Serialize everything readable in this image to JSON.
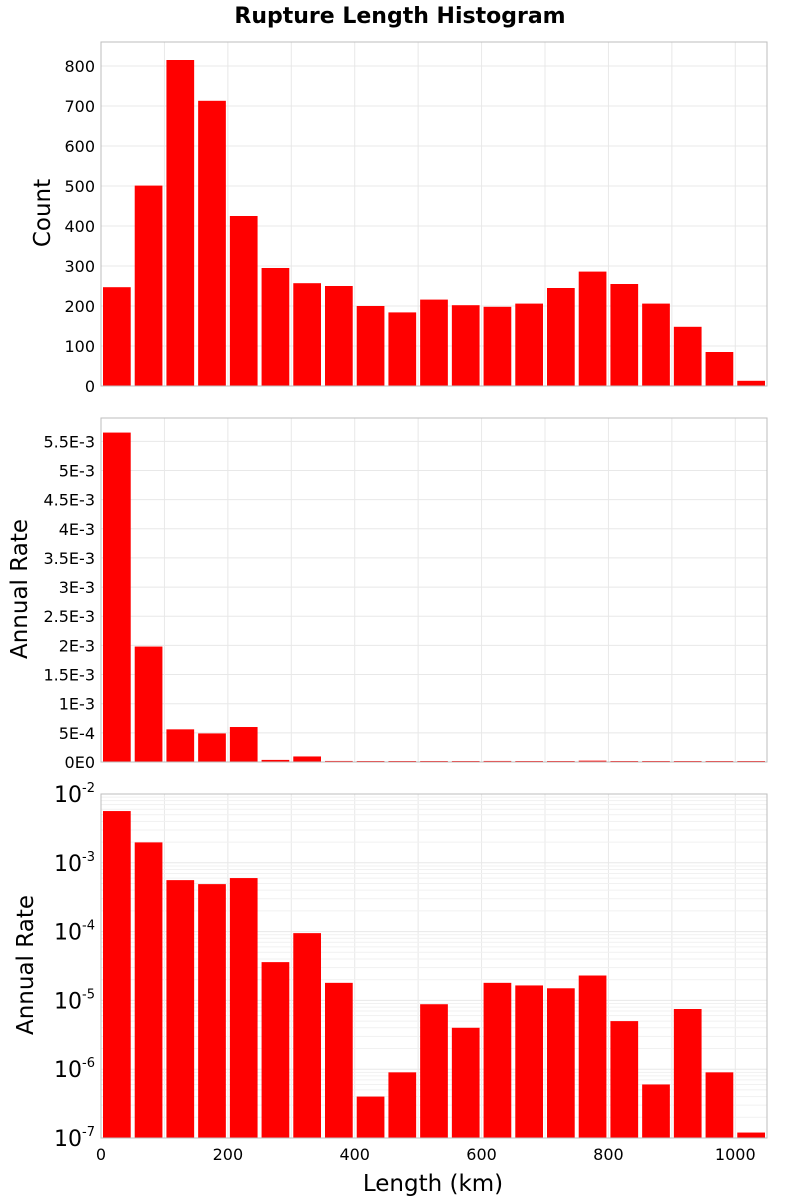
{
  "colors": {
    "bar": "#ff0000"
  },
  "chart_data": [
    {
      "type": "bar",
      "title": "Rupture Length Histogram",
      "xlabel": "",
      "ylabel": "Count",
      "bin_width": 50,
      "xlim": [
        0,
        1050
      ],
      "ylim": [
        0,
        860
      ],
      "yticks": [
        0,
        100,
        200,
        300,
        400,
        500,
        600,
        700,
        800
      ],
      "ytick_labels": [
        "0",
        "100",
        "200",
        "300",
        "400",
        "500",
        "600",
        "700",
        "800"
      ],
      "x": [
        25,
        75,
        125,
        175,
        225,
        275,
        325,
        375,
        425,
        475,
        525,
        575,
        625,
        675,
        725,
        775,
        825,
        875,
        925,
        975,
        1025
      ],
      "values": [
        247,
        501,
        815,
        713,
        425,
        295,
        257,
        250,
        200,
        184,
        216,
        202,
        198,
        206,
        245,
        286,
        255,
        206,
        148,
        85,
        13
      ]
    },
    {
      "type": "bar",
      "title": "",
      "xlabel": "",
      "ylabel": "Annual Rate",
      "bin_width": 50,
      "xlim": [
        0,
        1050
      ],
      "ylim": [
        0,
        0.0059
      ],
      "yticks": [
        0,
        0.0005,
        0.001,
        0.0015,
        0.002,
        0.0025,
        0.003,
        0.0035,
        0.004,
        0.0045,
        0.005,
        0.0055
      ],
      "ytick_labels": [
        "0E0",
        "5E-4",
        "1E-3",
        "1.5E-3",
        "2E-3",
        "2.5E-3",
        "3E-3",
        "3.5E-3",
        "4E-3",
        "4.5E-3",
        "5E-3",
        "5.5E-3"
      ],
      "x": [
        25,
        75,
        125,
        175,
        225,
        275,
        325,
        375,
        425,
        475,
        525,
        575,
        625,
        675,
        725,
        775,
        825,
        875,
        925,
        975,
        1025
      ],
      "values": [
        0.00565,
        0.00198,
        0.00056,
        0.00049,
        0.0006,
        3.6e-05,
        9.5e-05,
        1.8e-05,
        4e-07,
        9e-07,
        8.8e-06,
        4e-06,
        1.8e-05,
        1.65e-05,
        1.5e-05,
        2.3e-05,
        5e-06,
        6e-07,
        7.5e-06,
        9e-07,
        1.2e-07
      ]
    },
    {
      "type": "bar",
      "scale": "log",
      "title": "",
      "xlabel": "Length (km)",
      "ylabel": "Annual Rate",
      "bin_width": 50,
      "xlim": [
        0,
        1050
      ],
      "ylim": [
        1e-07,
        0.01
      ],
      "yticks_base": [
        "10",
        "10",
        "10",
        "10",
        "10",
        "10"
      ],
      "yticks_exp": [
        "-7",
        "-6",
        "-5",
        "-4",
        "-3",
        "-2"
      ],
      "xticks": [
        0,
        200,
        400,
        600,
        800,
        1000
      ],
      "xtick_labels": [
        "0",
        "200",
        "400",
        "600",
        "800",
        "1000"
      ],
      "x": [
        25,
        75,
        125,
        175,
        225,
        275,
        325,
        375,
        425,
        475,
        525,
        575,
        625,
        675,
        725,
        775,
        825,
        875,
        925,
        975,
        1025
      ],
      "values": [
        0.00565,
        0.00198,
        0.00056,
        0.00049,
        0.0006,
        3.6e-05,
        9.5e-05,
        1.8e-05,
        4e-07,
        9e-07,
        8.8e-06,
        4e-06,
        1.8e-05,
        1.65e-05,
        1.5e-05,
        2.3e-05,
        5e-06,
        6e-07,
        7.5e-06,
        9e-07,
        1.2e-07
      ]
    }
  ]
}
